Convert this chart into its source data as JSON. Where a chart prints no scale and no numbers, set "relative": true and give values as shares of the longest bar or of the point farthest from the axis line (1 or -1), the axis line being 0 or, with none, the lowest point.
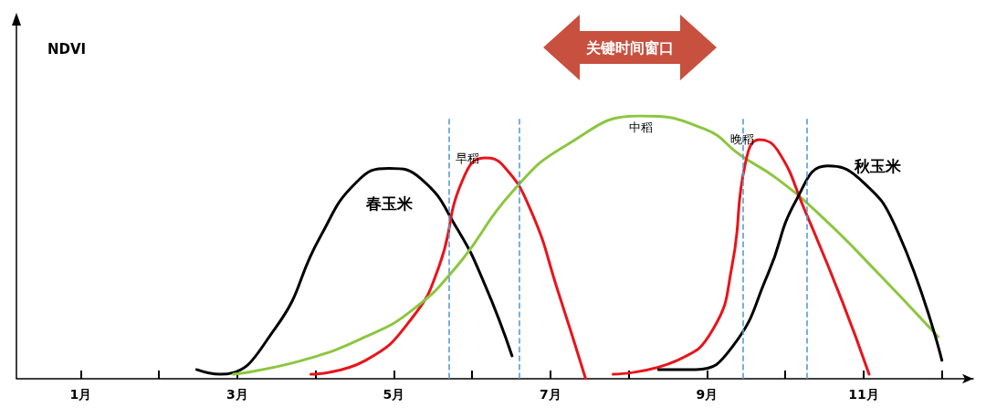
{
  "chart_data": {
    "type": "line",
    "relative": true,
    "ylabel": "NDVI",
    "annotations": [
      "关键时间窗口"
    ],
    "legend": false,
    "grid": false,
    "marker": "none",
    "line_style": "solid",
    "xlim": [
      0.18,
      12.4
    ],
    "xticks": [
      {
        "value": 1,
        "label": "1月"
      },
      {
        "value": 2,
        "label": null
      },
      {
        "value": 3,
        "label": "3月"
      },
      {
        "value": 4,
        "label": null
      },
      {
        "value": 5,
        "label": "5月"
      },
      {
        "value": 6,
        "label": null
      },
      {
        "value": 7,
        "label": "7月"
      },
      {
        "value": 8,
        "label": null
      },
      {
        "value": 9,
        "label": "9月"
      },
      {
        "value": 10,
        "label": null
      },
      {
        "value": 11,
        "label": "11月"
      },
      {
        "value": 12,
        "label": null
      }
    ],
    "series": [
      {
        "name": "春玉米",
        "color": "#000000",
        "x": [
          2.48,
          2.78,
          3.48,
          4.06,
          4.53,
          4.94,
          5.35,
          5.81,
          6.16,
          6.51
        ],
        "values": [
          0.035,
          0.017,
          0.19,
          0.54,
          0.75,
          0.8,
          0.76,
          0.57,
          0.36,
          0.087
        ]
      },
      {
        "name": "早稻",
        "color": "#e8141b",
        "x": [
          3.94,
          4.64,
          5.23,
          5.58,
          5.87,
          6.16,
          6.4,
          6.75,
          7.1,
          7.45
        ],
        "values": [
          0.017,
          0.07,
          0.23,
          0.43,
          0.75,
          0.84,
          0.81,
          0.64,
          0.33,
          0
        ]
      },
      {
        "name": "中稻",
        "color": "#8cc63f",
        "x": [
          2.95,
          3.83,
          4.64,
          5.23,
          5.81,
          6.51,
          7.21,
          8.15,
          8.97,
          9.43,
          9.9,
          10.49,
          11.19,
          11.95
        ],
        "values": [
          0.017,
          0.07,
          0.16,
          0.26,
          0.43,
          0.71,
          0.89,
          1,
          0.95,
          0.85,
          0.76,
          0.61,
          0.4,
          0.16
        ]
      },
      {
        "name": "晚稻",
        "color": "#e8141b",
        "x": [
          7.8,
          8.62,
          9.08,
          9.32,
          9.49,
          9.67,
          9.9,
          10.25,
          10.72,
          11.07
        ],
        "values": [
          0.017,
          0.07,
          0.19,
          0.43,
          0.82,
          0.91,
          0.87,
          0.64,
          0.3,
          0.017
        ]
      },
      {
        "name": "秋玉米",
        "color": "#000000",
        "x": [
          8.38,
          8.85,
          9.32,
          9.78,
          10.14,
          10.54,
          10.95,
          11.42,
          12.0
        ],
        "values": [
          0.035,
          0.035,
          0.12,
          0.4,
          0.68,
          0.81,
          0.76,
          0.57,
          0.07
        ]
      }
    ],
    "ref_lines": [
      {
        "axis": "x",
        "value": 5.7,
        "color": "#5b9bd5",
        "line_style": "dashed"
      },
      {
        "axis": "x",
        "value": 6.6,
        "color": "#5b9bd5",
        "line_style": "dashed"
      },
      {
        "axis": "x",
        "value": 9.46,
        "color": "#5b9bd5",
        "line_style": "dashed"
      },
      {
        "axis": "x",
        "value": 10.28,
        "color": "#5b9bd5",
        "line_style": "dashed"
      }
    ]
  }
}
